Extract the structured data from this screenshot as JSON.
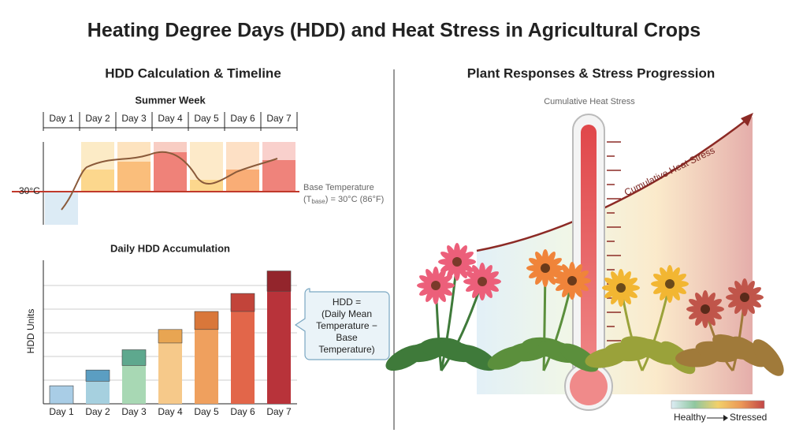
{
  "title": "Heating Degree Days (HDD) and Heat Stress in Agricultural Crops",
  "left": {
    "heading": "HDD Calculation & Timeline",
    "timeline": {
      "title": "Summer Week",
      "base_label": "30°C",
      "base_note": "Base Temperature",
      "base_formula": [
        "(T",
        "base",
        ") = 30°C (86°F)"
      ]
    },
    "hdd_chart": {
      "type": "bar",
      "title": "Daily HDD Accumulation",
      "y_label": "HDD Units",
      "categories": [
        "Day 1",
        "Day 2",
        "Day 3",
        "Day 4",
        "Day 5",
        "Day 6",
        "Day 7"
      ],
      "previous": [
        0,
        1.0,
        1.7,
        2.7,
        3.3,
        4.1,
        5.0
      ],
      "added": [
        0.8,
        0.5,
        0.7,
        0.6,
        0.8,
        0.8,
        0.9
      ],
      "previous_colors": [
        "#a9cde6",
        "#a6d0df",
        "#a8d8b4",
        "#f6c98a",
        "#efa05e",
        "#e2664a",
        "#b8333a"
      ],
      "added_colors": [
        "#a9cde6",
        "#5b9ec2",
        "#5ea88e",
        "#e8a552",
        "#d9773a",
        "#c2443a",
        "#93252c"
      ],
      "ylim": [
        0,
        6.2
      ]
    },
    "callout": [
      "HDD =",
      "(Daily Mean",
      "Temperature −",
      "Base",
      "Temperature)"
    ]
  },
  "right": {
    "heading": "Plant Responses & Stress Progression",
    "thermometer_label": "Cumulative Heat Stress",
    "arrow_label": "Cumulative Heat Stress",
    "legend": [
      "Healthy",
      "Stressed"
    ]
  }
}
